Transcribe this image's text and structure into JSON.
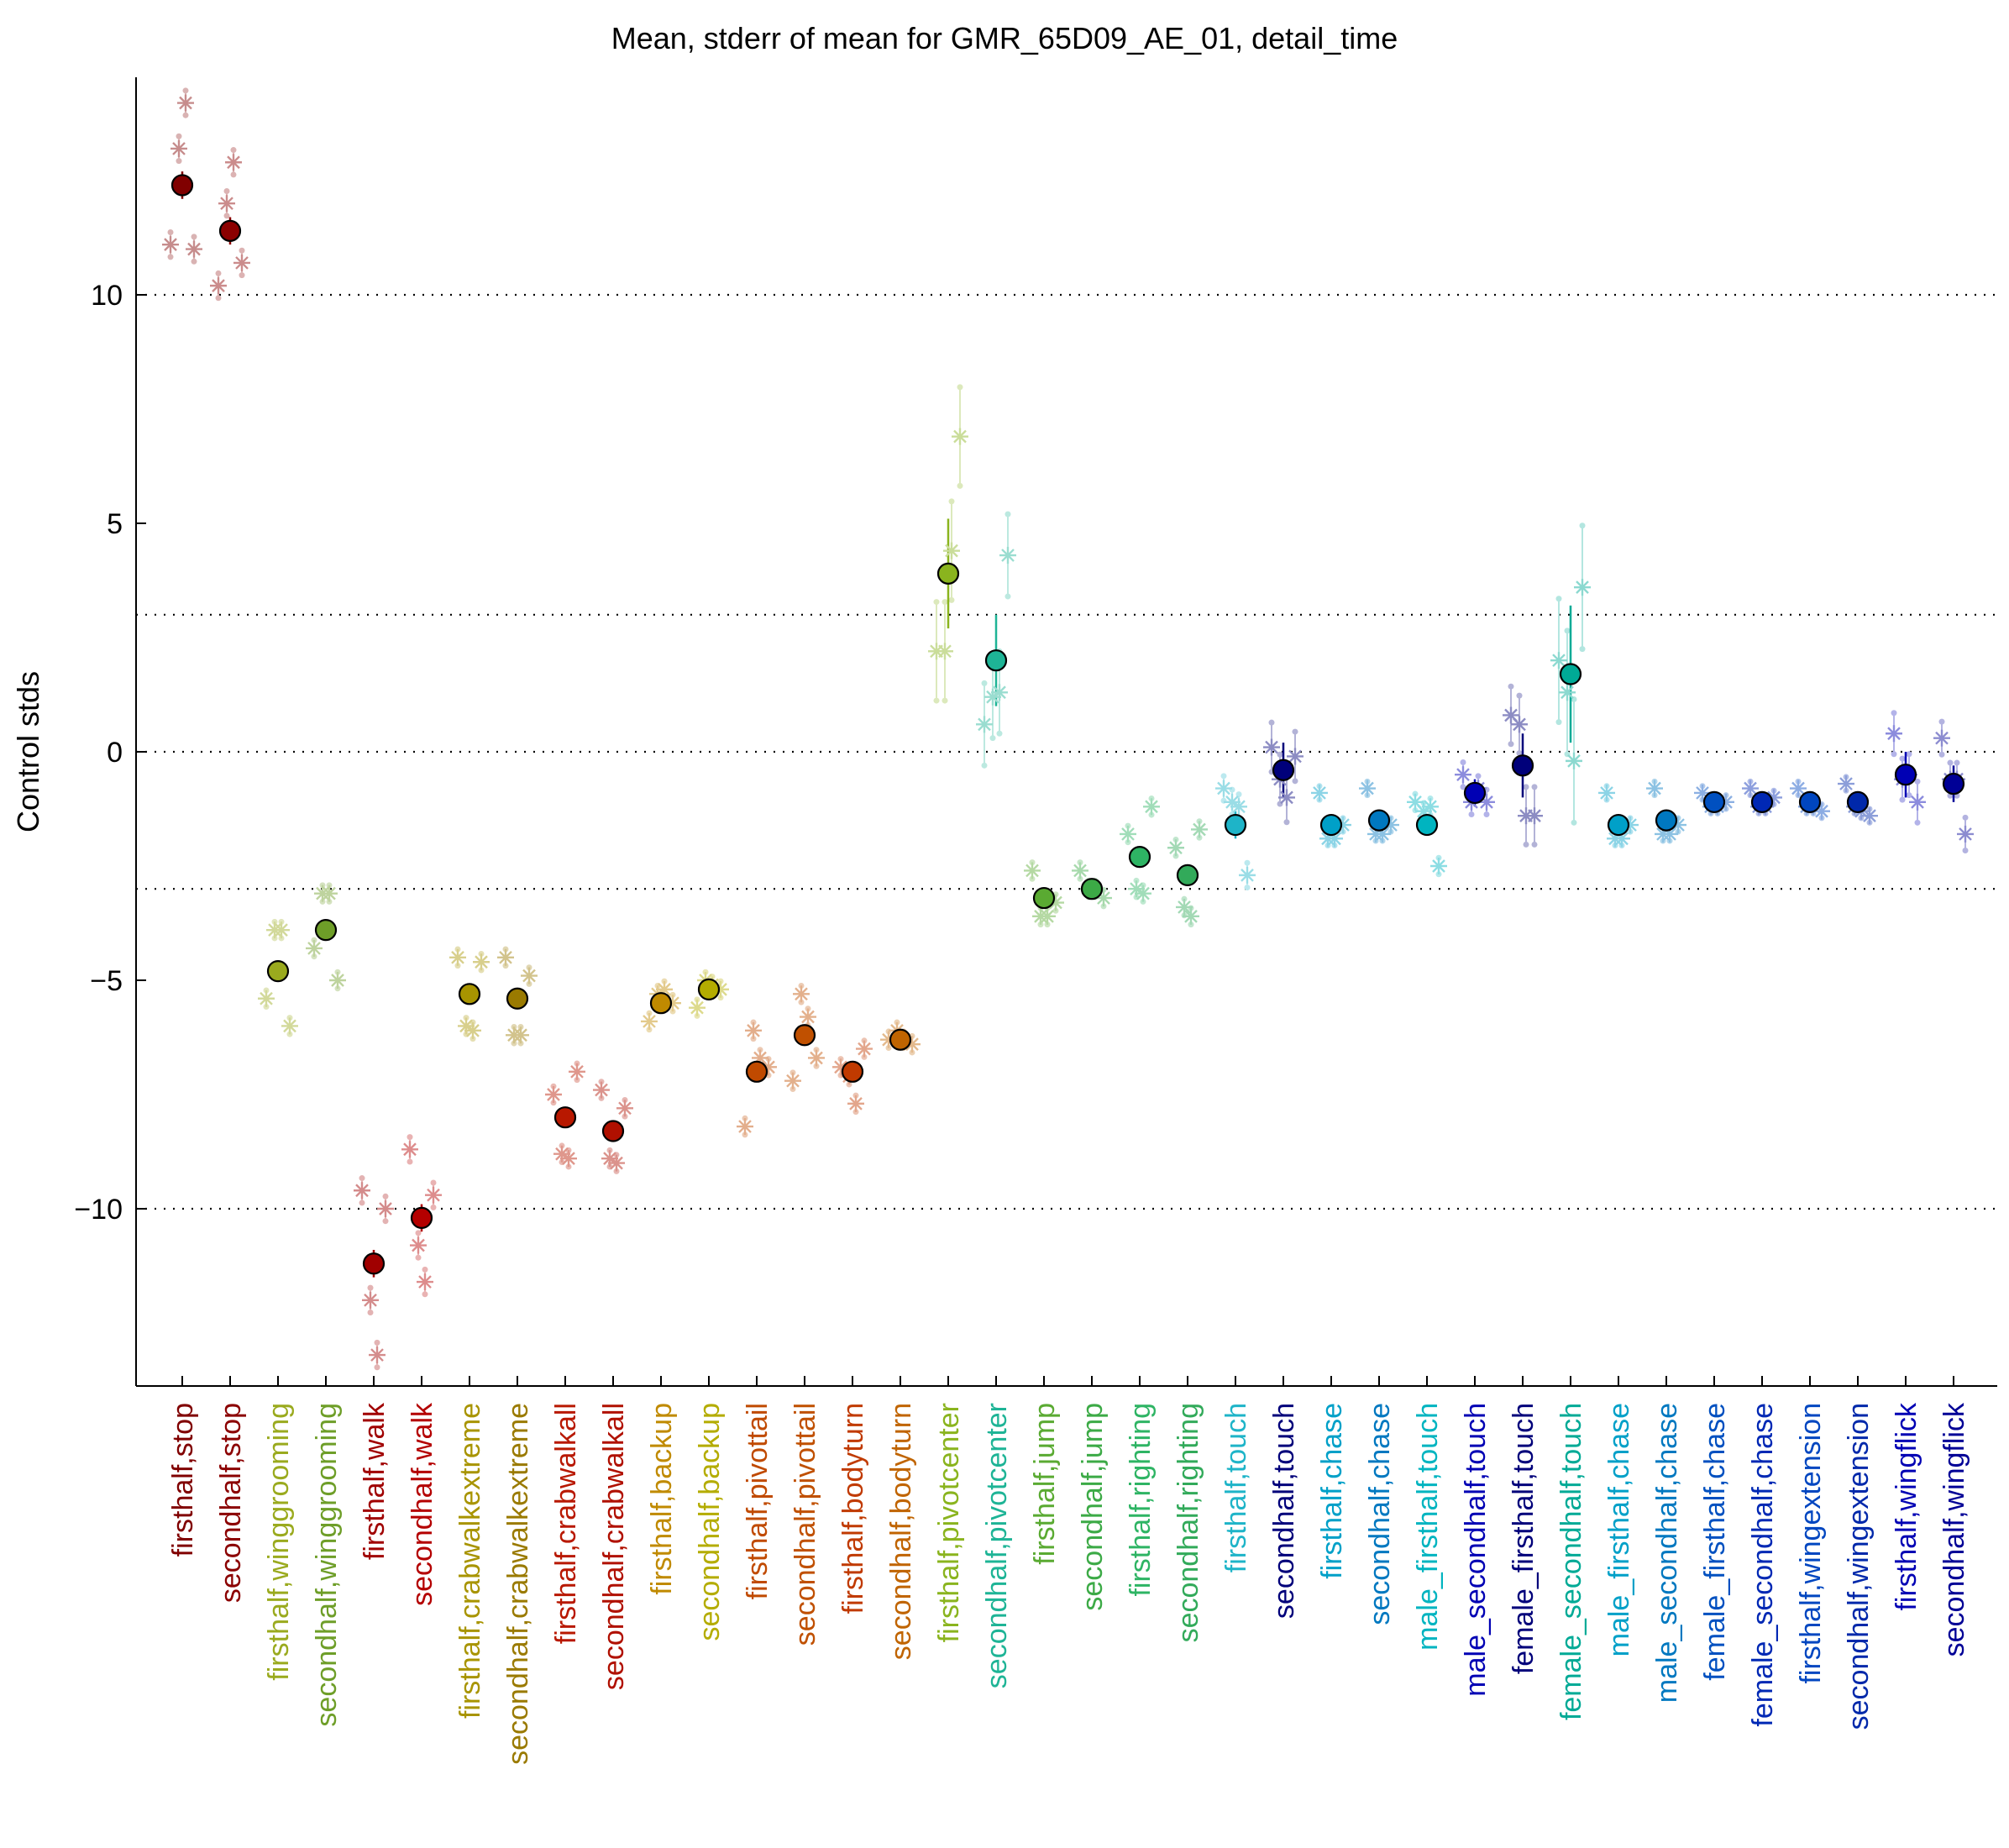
{
  "chart_data": {
    "type": "scatter",
    "title": "Mean, stderr of mean for GMR_65D09_AE_01, detail_time",
    "ylabel": "Control stds",
    "xlabel": "",
    "ylim": [
      -13.8,
      14.8
    ],
    "yticks": [
      10,
      5,
      0,
      -5,
      -10
    ],
    "reference_lines": [
      10,
      3,
      0,
      -3,
      -10
    ],
    "grid": false,
    "categories": [
      {
        "label": "firsthalf,stop",
        "color": "#800000",
        "mean": 12.4,
        "err": 0.3,
        "points": [
          11.1,
          13.2,
          14.2,
          11.0
        ]
      },
      {
        "label": "secondhalf,stop",
        "color": "#8b0000",
        "mean": 11.4,
        "err": 0.3,
        "points": [
          10.2,
          12.0,
          12.9,
          10.7
        ]
      },
      {
        "label": "firsthalf,winggrooming",
        "color": "#9aaa1e",
        "mean": -4.8,
        "err": 0.2,
        "points": [
          -5.4,
          -3.9,
          -3.9,
          -6.0
        ]
      },
      {
        "label": "secondhalf,winggrooming",
        "color": "#6e9e28",
        "mean": -3.9,
        "err": 0.2,
        "points": [
          -4.3,
          -3.1,
          -3.1,
          -5.0
        ]
      },
      {
        "label": "firsthalf,walk",
        "color": "#a00000",
        "mean": -11.2,
        "err": 0.3,
        "points": [
          -9.6,
          -12.0,
          -13.2,
          -10.0
        ]
      },
      {
        "label": "secondhalf,walk",
        "color": "#b40000",
        "mean": -10.2,
        "err": 0.3,
        "points": [
          -8.7,
          -10.8,
          -11.6,
          -9.7
        ]
      },
      {
        "label": "firsthalf,crabwalkextreme",
        "color": "#a89400",
        "mean": -5.3,
        "err": 0.2,
        "points": [
          -4.5,
          -6.0,
          -6.1,
          -4.6
        ]
      },
      {
        "label": "secondhalf,crabwalkextreme",
        "color": "#9a7a00",
        "mean": -5.4,
        "err": 0.2,
        "points": [
          -4.5,
          -6.2,
          -6.2,
          -4.9
        ]
      },
      {
        "label": "firsthalf,crabwalkall",
        "color": "#b81800",
        "mean": -8.0,
        "err": 0.2,
        "points": [
          -7.5,
          -8.8,
          -8.9,
          -7.0
        ]
      },
      {
        "label": "secondhalf,crabwalkall",
        "color": "#b01000",
        "mean": -8.3,
        "err": 0.2,
        "points": [
          -7.4,
          -8.9,
          -9.0,
          -7.8
        ]
      },
      {
        "label": "firsthalf,backup",
        "color": "#c08a00",
        "mean": -5.5,
        "err": 0.2,
        "points": [
          -5.9,
          -5.3,
          -5.2,
          -5.5
        ]
      },
      {
        "label": "secondhalf,backup",
        "color": "#b4ac00",
        "mean": -5.2,
        "err": 0.2,
        "points": [
          -5.6,
          -5.0,
          -5.1,
          -5.2
        ]
      },
      {
        "label": "firsthalf,pivottail",
        "color": "#c04a00",
        "mean": -7.0,
        "err": 0.2,
        "points": [
          -8.2,
          -6.1,
          -6.7,
          -6.9
        ]
      },
      {
        "label": "secondhalf,pivottail",
        "color": "#c05000",
        "mean": -6.2,
        "err": 0.2,
        "points": [
          -7.2,
          -5.3,
          -5.8,
          -6.7
        ]
      },
      {
        "label": "firsthalf,bodyturn",
        "color": "#c03a00",
        "mean": -7.0,
        "err": 0.2,
        "points": [
          -6.9,
          -7.1,
          -7.7,
          -6.5
        ]
      },
      {
        "label": "secondhalf,bodyturn",
        "color": "#c06400",
        "mean": -6.3,
        "err": 0.2,
        "points": [
          -6.3,
          -6.1,
          -6.3,
          -6.4
        ]
      },
      {
        "label": "firsthalf,pivotcenter",
        "color": "#8ab41e",
        "mean": 3.9,
        "err": 1.2,
        "points": [
          2.2,
          2.2,
          4.4,
          6.9
        ]
      },
      {
        "label": "secondhalf,pivotcenter",
        "color": "#1eb496",
        "mean": 2.0,
        "err": 1.0,
        "points": [
          0.6,
          1.2,
          1.3,
          4.3
        ]
      },
      {
        "label": "firsthalf,jump",
        "color": "#5aaa32",
        "mean": -3.2,
        "err": 0.2,
        "points": [
          -2.6,
          -3.6,
          -3.6,
          -3.3
        ]
      },
      {
        "label": "secondhalf,jump",
        "color": "#3caa46",
        "mean": -3.0,
        "err": 0.2,
        "points": [
          -2.6,
          -3.0,
          -3.0,
          -3.2
        ]
      },
      {
        "label": "firsthalf,righting",
        "color": "#2eb464",
        "mean": -2.3,
        "err": 0.2,
        "points": [
          -1.8,
          -3.0,
          -3.1,
          -1.2
        ]
      },
      {
        "label": "secondhalf,righting",
        "color": "#32aa5a",
        "mean": -2.7,
        "err": 0.2,
        "points": [
          -2.1,
          -3.4,
          -3.6,
          -1.7
        ]
      },
      {
        "label": "firsthalf,touch",
        "color": "#1eb4c8",
        "mean": -1.6,
        "err": 0.3,
        "points": [
          -0.8,
          -1.1,
          -1.2,
          -2.7
        ]
      },
      {
        "label": "secondhalf,touch",
        "color": "#00007a",
        "mean": -0.4,
        "err": 0.6,
        "points": [
          0.1,
          -0.6,
          -1.0,
          -0.1
        ]
      },
      {
        "label": "firsthalf,chase",
        "color": "#00a0c8",
        "mean": -1.6,
        "err": 0.1,
        "points": [
          -0.9,
          -1.9,
          -1.9,
          -1.6
        ]
      },
      {
        "label": "secondhalf,chase",
        "color": "#0078c0",
        "mean": -1.5,
        "err": 0.1,
        "points": [
          -0.8,
          -1.8,
          -1.8,
          -1.6
        ]
      },
      {
        "label": "male_firsthalf,touch",
        "color": "#00b4c0",
        "mean": -1.6,
        "err": 0.2,
        "points": [
          -1.1,
          -1.3,
          -1.2,
          -2.5
        ]
      },
      {
        "label": "male_secondhalf,touch",
        "color": "#0000b4",
        "mean": -0.9,
        "err": 0.3,
        "points": [
          -0.5,
          -1.1,
          -0.8,
          -1.1
        ]
      },
      {
        "label": "female_firsthalf,touch",
        "color": "#00007a",
        "mean": -0.3,
        "err": 0.7,
        "points": [
          0.8,
          0.6,
          -1.4,
          -1.4
        ]
      },
      {
        "label": "female_secondhalf,touch",
        "color": "#00aa96",
        "mean": 1.7,
        "err": 1.5,
        "points": [
          2.0,
          1.3,
          -0.2,
          3.6
        ]
      },
      {
        "label": "male_firsthalf,chase",
        "color": "#00a0c8",
        "mean": -1.6,
        "err": 0.1,
        "points": [
          -0.9,
          -1.9,
          -1.9,
          -1.6
        ]
      },
      {
        "label": "male_secondhalf,chase",
        "color": "#0078c0",
        "mean": -1.5,
        "err": 0.1,
        "points": [
          -0.8,
          -1.8,
          -1.8,
          -1.6
        ]
      },
      {
        "label": "female_firsthalf,chase",
        "color": "#0050c0",
        "mean": -1.1,
        "err": 0.1,
        "points": [
          -0.9,
          -1.2,
          -1.2,
          -1.1
        ]
      },
      {
        "label": "female_secondhalf,chase",
        "color": "#0028b4",
        "mean": -1.1,
        "err": 0.1,
        "points": [
          -0.8,
          -1.2,
          -1.2,
          -1.0
        ]
      },
      {
        "label": "firsthalf,wingextension",
        "color": "#0046c0",
        "mean": -1.1,
        "err": 0.1,
        "points": [
          -0.8,
          -1.2,
          -1.2,
          -1.3
        ]
      },
      {
        "label": "secondhalf,wingextension",
        "color": "#0028aa",
        "mean": -1.1,
        "err": 0.1,
        "points": [
          -0.7,
          -1.2,
          -1.3,
          -1.4
        ]
      },
      {
        "label": "firsthalf,wingflick",
        "color": "#0000b4",
        "mean": -0.5,
        "err": 0.5,
        "points": [
          0.4,
          -0.6,
          -0.5,
          -1.1
        ]
      },
      {
        "label": "secondhalf,wingflick",
        "color": "#000096",
        "mean": -0.7,
        "err": 0.4,
        "points": [
          0.3,
          -0.6,
          -0.6,
          -1.8
        ]
      }
    ]
  }
}
